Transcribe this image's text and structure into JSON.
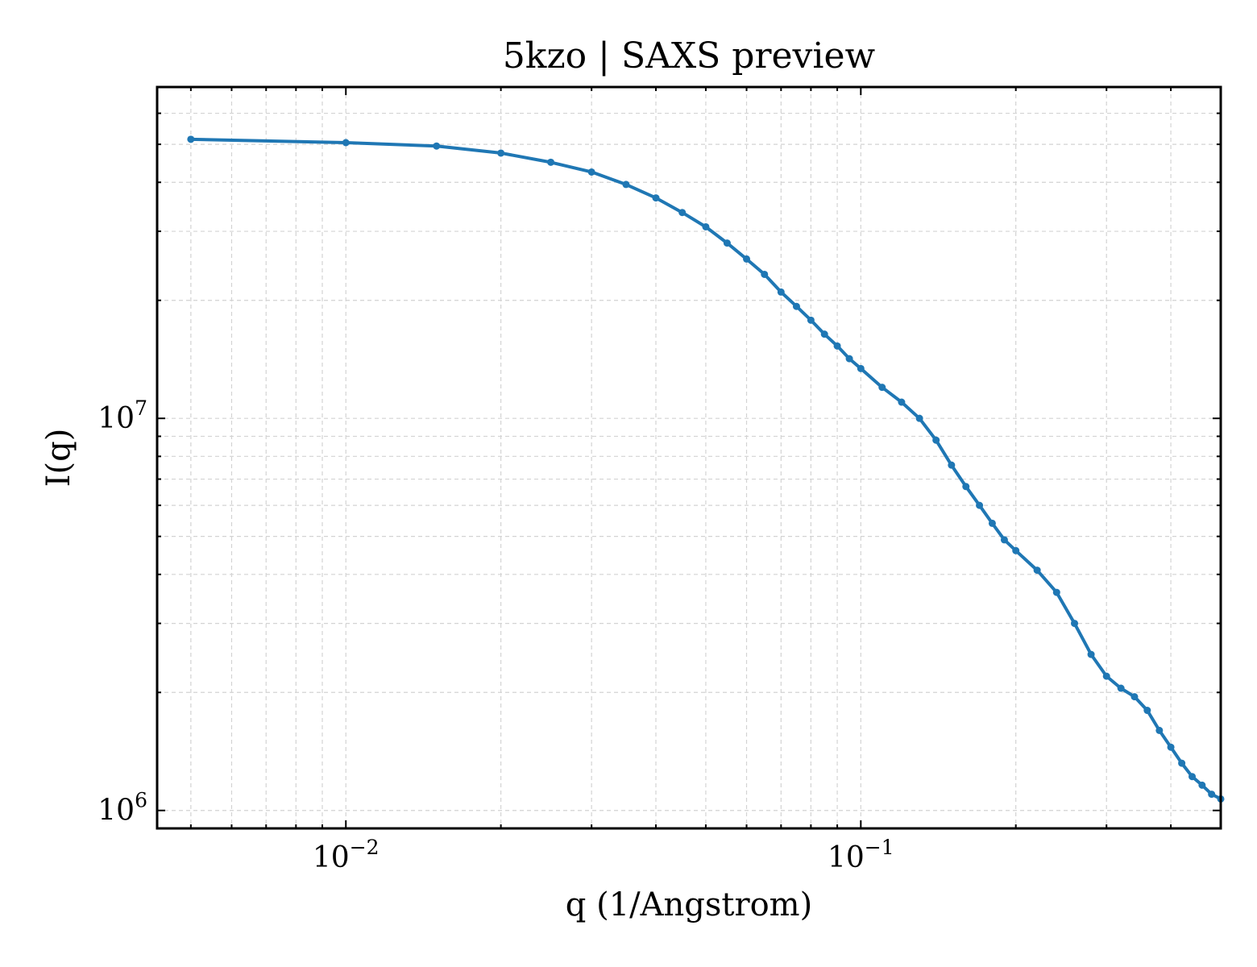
{
  "chart_data": {
    "type": "line",
    "title": "5kzo | SAXS preview",
    "xlabel": "q (1/Angstrom)",
    "ylabel": "I(q)",
    "xscale": "log",
    "yscale": "log",
    "xlim": [
      0.0043,
      0.5
    ],
    "ylim": [
      900000,
      70000000
    ],
    "grid": true,
    "legend": "none",
    "x_ticks": [
      {
        "value": 0.01,
        "base": "10",
        "exp": "−2"
      },
      {
        "value": 0.1,
        "base": "10",
        "exp": "−1"
      }
    ],
    "y_ticks": [
      {
        "value": 1000000,
        "base": "10",
        "exp": "6"
      },
      {
        "value": 10000000,
        "base": "10",
        "exp": "7"
      }
    ],
    "series": [
      {
        "color": "#1f77b4",
        "marker": "circle",
        "q": [
          0.005,
          0.01,
          0.015,
          0.02,
          0.025,
          0.03,
          0.035,
          0.04,
          0.045,
          0.05,
          0.055,
          0.06,
          0.065,
          0.07,
          0.075,
          0.08,
          0.085,
          0.09,
          0.095,
          0.1,
          0.11,
          0.12,
          0.13,
          0.14,
          0.15,
          0.16,
          0.17,
          0.18,
          0.19,
          0.2,
          0.22,
          0.24,
          0.26,
          0.28,
          0.3,
          0.32,
          0.34,
          0.36,
          0.38,
          0.4,
          0.42,
          0.44,
          0.46,
          0.48,
          0.5
        ],
        "I": [
          51500000,
          50500000,
          49500000,
          47500000,
          45000000,
          42500000,
          39500000,
          36500000,
          33500000,
          30800000,
          28000000,
          25500000,
          23300000,
          21000000,
          19300000,
          17800000,
          16400000,
          15300000,
          14200000,
          13400000,
          12000000,
          11000000,
          10000000,
          8800000,
          7600000,
          6700000,
          6000000,
          5400000,
          4900000,
          4600000,
          4100000,
          3600000,
          3000000,
          2500000,
          2200000,
          2050000,
          1950000,
          1800000,
          1600000,
          1450000,
          1320000,
          1220000,
          1160000,
          1100000,
          1070000
        ]
      }
    ]
  }
}
